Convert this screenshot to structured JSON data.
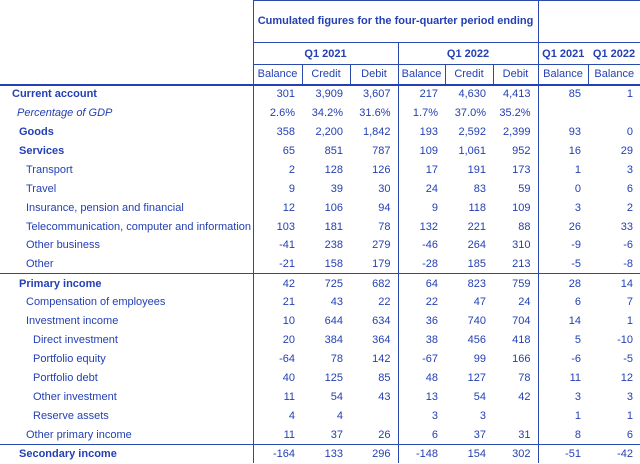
{
  "colors": {
    "text": "#2440b4",
    "border": "#2c49ae"
  },
  "header": {
    "spanner": "Cumulated figures for the four-quarter period ending",
    "group1_label": "Q1 2021",
    "group2_label": "Q1 2022",
    "group3_label_1": "Q1 2021",
    "group3_label_2": "Q1 2022",
    "col_labels": [
      "Balance",
      "Credit",
      "Debit",
      "Balance",
      "Credit",
      "Debit",
      "Balance",
      "Balance"
    ]
  },
  "rows": [
    {
      "label": "Current account",
      "level": 0,
      "bold": true,
      "italic": false,
      "topline": false,
      "values": [
        "301",
        "3,909",
        "3,607",
        "217",
        "4,630",
        "4,413",
        "85",
        "1"
      ]
    },
    {
      "label": "Percentage of GDP",
      "level": 1,
      "bold": false,
      "italic": true,
      "topline": false,
      "values": [
        "2.6%",
        "34.2%",
        "31.6%",
        "1.7%",
        "37.0%",
        "35.2%",
        "",
        ""
      ]
    },
    {
      "label": "Goods",
      "level": 2,
      "bold": true,
      "italic": false,
      "topline": false,
      "values": [
        "358",
        "2,200",
        "1,842",
        "193",
        "2,592",
        "2,399",
        "93",
        "0"
      ]
    },
    {
      "label": "Services",
      "level": 2,
      "bold": true,
      "italic": false,
      "topline": false,
      "values": [
        "65",
        "851",
        "787",
        "109",
        "1,061",
        "952",
        "16",
        "29"
      ]
    },
    {
      "label": "Transport",
      "level": 3,
      "bold": false,
      "italic": false,
      "topline": false,
      "values": [
        "2",
        "128",
        "126",
        "17",
        "191",
        "173",
        "1",
        "3"
      ]
    },
    {
      "label": "Travel",
      "level": 3,
      "bold": false,
      "italic": false,
      "topline": false,
      "values": [
        "9",
        "39",
        "30",
        "24",
        "83",
        "59",
        "0",
        "6"
      ]
    },
    {
      "label": "Insurance, pension and financial",
      "level": 3,
      "bold": false,
      "italic": false,
      "topline": false,
      "values": [
        "12",
        "106",
        "94",
        "9",
        "118",
        "109",
        "3",
        "2"
      ]
    },
    {
      "label": "Telecommunication, computer and information",
      "level": 3,
      "bold": false,
      "italic": false,
      "topline": false,
      "values": [
        "103",
        "181",
        "78",
        "132",
        "221",
        "88",
        "26",
        "33"
      ]
    },
    {
      "label": "Other business",
      "level": 3,
      "bold": false,
      "italic": false,
      "topline": false,
      "values": [
        "-41",
        "238",
        "279",
        "-46",
        "264",
        "310",
        "-9",
        "-6"
      ]
    },
    {
      "label": "Other",
      "level": 3,
      "bold": false,
      "italic": false,
      "topline": false,
      "values": [
        "-21",
        "158",
        "179",
        "-28",
        "185",
        "213",
        "-5",
        "-8"
      ]
    },
    {
      "label": "Primary income",
      "level": 2,
      "bold": true,
      "italic": false,
      "topline": true,
      "values": [
        "42",
        "725",
        "682",
        "64",
        "823",
        "759",
        "28",
        "14"
      ]
    },
    {
      "label": "Compensation of employees",
      "level": 3,
      "bold": false,
      "italic": false,
      "topline": false,
      "values": [
        "21",
        "43",
        "22",
        "22",
        "47",
        "24",
        "6",
        "7"
      ]
    },
    {
      "label": "Investment income",
      "level": 3,
      "bold": false,
      "italic": false,
      "topline": false,
      "values": [
        "10",
        "644",
        "634",
        "36",
        "740",
        "704",
        "14",
        "1"
      ]
    },
    {
      "label": "Direct investment",
      "level": 4,
      "bold": false,
      "italic": false,
      "topline": false,
      "values": [
        "20",
        "384",
        "364",
        "38",
        "456",
        "418",
        "5",
        "-10"
      ]
    },
    {
      "label": "Portfolio equity",
      "level": 4,
      "bold": false,
      "italic": false,
      "topline": false,
      "values": [
        "-64",
        "78",
        "142",
        "-67",
        "99",
        "166",
        "-6",
        "-5"
      ]
    },
    {
      "label": "Portfolio debt",
      "level": 4,
      "bold": false,
      "italic": false,
      "topline": false,
      "values": [
        "40",
        "125",
        "85",
        "48",
        "127",
        "78",
        "11",
        "12"
      ]
    },
    {
      "label": "Other investment",
      "level": 4,
      "bold": false,
      "italic": false,
      "topline": false,
      "values": [
        "11",
        "54",
        "43",
        "13",
        "54",
        "42",
        "3",
        "3"
      ]
    },
    {
      "label": "Reserve assets",
      "level": 4,
      "bold": false,
      "italic": false,
      "topline": false,
      "values": [
        "4",
        "4",
        "",
        "3",
        "3",
        "",
        "1",
        "1"
      ]
    },
    {
      "label": "Other primary income",
      "level": 3,
      "bold": false,
      "italic": false,
      "topline": false,
      "values": [
        "11",
        "37",
        "26",
        "6",
        "37",
        "31",
        "8",
        "6"
      ]
    },
    {
      "label": "Secondary income",
      "level": 2,
      "bold": true,
      "italic": false,
      "topline": true,
      "values": [
        "-164",
        "133",
        "296",
        "-148",
        "154",
        "302",
        "-51",
        "-42"
      ]
    }
  ]
}
